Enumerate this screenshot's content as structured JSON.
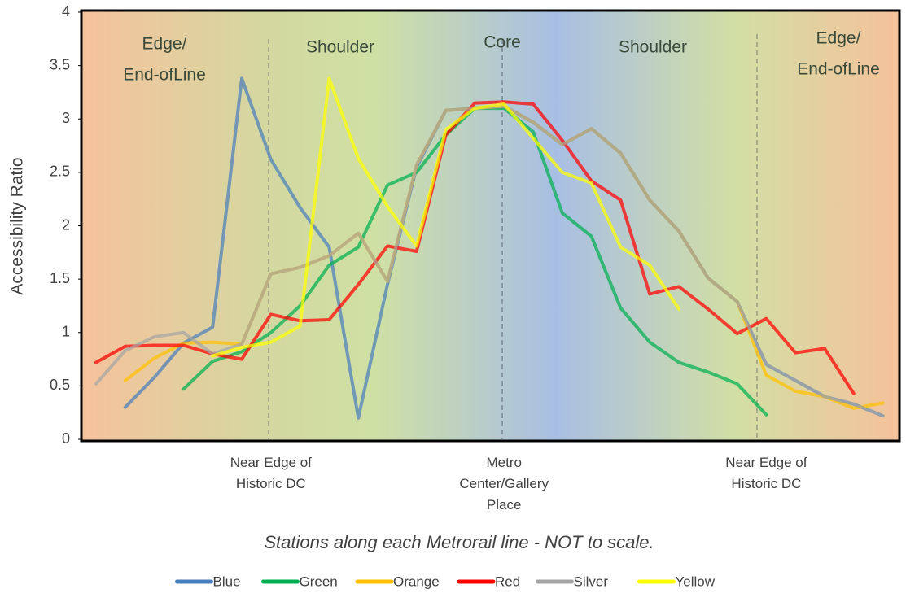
{
  "chart_data": {
    "type": "line",
    "y_label": "Accessibility Ratio",
    "x_label": "Stations along each Metrorail line - NOT to scale.",
    "annotations": [
      [
        "Edge/",
        "End-ofLine"
      ],
      [
        "Shoulder"
      ],
      [
        "Core"
      ],
      [
        "Shoulder"
      ],
      [
        "Edge/",
        "End-ofLine"
      ]
    ],
    "categories": [
      null,
      null,
      null,
      null,
      null,
      null,
      "Near Edge of Historic DC",
      null,
      null,
      null,
      null,
      null,
      null,
      null,
      "Metro Center/Gallery Place",
      null,
      null,
      null,
      null,
      null,
      null,
      null,
      null,
      "Near Edge of Historic DC",
      null,
      null,
      null,
      null
    ],
    "series": [
      {
        "name": "Blue",
        "color": "#4a7ebb",
        "values": [
          null,
          0.3,
          0.58,
          0.9,
          1.05,
          3.38,
          2.62,
          2.17,
          1.8,
          0.2,
          1.45,
          2.55,
          3.08,
          3.1,
          3.12,
          2.97,
          2.76,
          2.91,
          2.68,
          2.24,
          1.95,
          1.51,
          1.29,
          0.7,
          0.55,
          0.4,
          0.33,
          0.22
        ]
      },
      {
        "name": "Green",
        "color": "#00b050",
        "values": [
          null,
          null,
          null,
          0.47,
          0.73,
          0.82,
          1.0,
          1.25,
          1.63,
          1.8,
          2.38,
          2.5,
          2.85,
          3.1,
          3.1,
          2.88,
          2.12,
          1.9,
          1.23,
          0.91,
          0.72,
          0.63,
          0.52,
          0.23,
          null,
          null,
          null,
          null
        ]
      },
      {
        "name": "Orange",
        "color": "#ffc000",
        "values": [
          null,
          0.55,
          0.76,
          0.9,
          0.91,
          0.89,
          1.55,
          1.61,
          1.72,
          1.93,
          1.48,
          2.57,
          3.08,
          3.1,
          3.12,
          2.97,
          2.76,
          2.91,
          2.68,
          2.24,
          1.95,
          1.51,
          1.29,
          0.6,
          0.45,
          0.4,
          0.29,
          0.34
        ]
      },
      {
        "name": "Red",
        "color": "#ff0000",
        "values": [
          0.72,
          0.87,
          0.88,
          0.88,
          0.8,
          0.75,
          1.17,
          1.11,
          1.12,
          1.45,
          1.81,
          1.76,
          2.85,
          3.15,
          3.16,
          3.14,
          2.8,
          2.42,
          2.24,
          1.36,
          1.43,
          1.22,
          0.99,
          1.13,
          0.81,
          0.85,
          0.43,
          null
        ]
      },
      {
        "name": "Silver",
        "color": "#a5a5a5",
        "values": [
          0.52,
          0.83,
          0.96,
          1.0,
          0.8,
          0.89,
          1.55,
          1.61,
          1.72,
          1.93,
          1.48,
          2.57,
          3.08,
          3.1,
          3.12,
          2.97,
          2.76,
          2.91,
          2.68,
          2.24,
          1.95,
          1.51,
          1.29,
          0.7,
          0.55,
          0.4,
          0.33,
          0.22
        ]
      },
      {
        "name": "Yellow",
        "color": "#ffff00",
        "values": [
          null,
          null,
          null,
          null,
          0.78,
          0.86,
          0.91,
          1.06,
          3.38,
          2.63,
          2.18,
          1.81,
          2.9,
          3.1,
          3.14,
          2.82,
          2.5,
          2.4,
          1.8,
          1.63,
          1.22,
          null,
          null,
          null,
          null,
          null,
          null,
          null
        ]
      }
    ],
    "ylim": [
      0,
      4
    ],
    "yticks": [
      0,
      0.5,
      1,
      1.5,
      2,
      2.5,
      3,
      3.5,
      4
    ],
    "grid": false,
    "legend": "bottom"
  }
}
